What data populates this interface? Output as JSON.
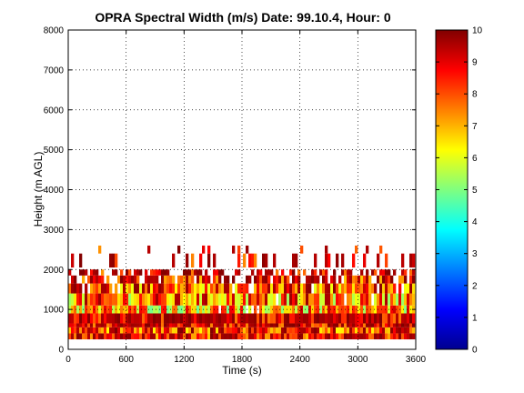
{
  "chart_data": {
    "type": "heatmap",
    "title": "OPRA Spectral Width (m/s)  Date: 99.10.4, Hour: 0",
    "xlabel": "Time (s)",
    "ylabel": "Height (m AGL)",
    "xlim": [
      0,
      3600
    ],
    "ylim": [
      0,
      8000
    ],
    "xticks": [
      "0",
      "600",
      "1200",
      "1800",
      "2400",
      "3000",
      "3600"
    ],
    "yticks": [
      "0",
      "1000",
      "2000",
      "3000",
      "4000",
      "5000",
      "6000",
      "7000",
      "8000"
    ],
    "grid": true,
    "colorbar": {
      "colormap": "jet",
      "range": [
        0,
        10
      ],
      "ticks": [
        "0",
        "1",
        "2",
        "3",
        "4",
        "5",
        "6",
        "7",
        "8",
        "9",
        "10"
      ]
    },
    "z_unit": "m/s",
    "dense_layer_height_m": [
      250,
      2000
    ],
    "sparse_layer_height_m": [
      2050,
      2600
    ],
    "layers": [
      {
        "height_m": [
          250,
          400
        ],
        "mean": 9.0,
        "coverage": 1.0
      },
      {
        "height_m": [
          400,
          550
        ],
        "mean": 8.5,
        "coverage": 1.0
      },
      {
        "height_m": [
          550,
          650
        ],
        "mean": 9.6,
        "coverage": 1.0
      },
      {
        "height_m": [
          650,
          900
        ],
        "mean": 9.8,
        "coverage": 1.0
      },
      {
        "height_m": [
          900,
          1100
        ],
        "mean": 7.0,
        "coverage": 0.97
      },
      {
        "height_m": [
          1100,
          1400
        ],
        "mean": 7.5,
        "coverage": 0.95
      },
      {
        "height_m": [
          1400,
          1650
        ],
        "mean": 8.2,
        "coverage": 0.9
      },
      {
        "height_m": [
          1650,
          1850
        ],
        "mean": 9.0,
        "coverage": 0.75
      },
      {
        "height_m": [
          1850,
          2000
        ],
        "mean": 9.4,
        "coverage": 0.6
      },
      {
        "height_m": [
          2050,
          2400
        ],
        "mean": 9.3,
        "coverage": 0.28
      },
      {
        "height_m": [
          2400,
          2600
        ],
        "mean": 9.0,
        "coverage": 0.1
      }
    ]
  }
}
